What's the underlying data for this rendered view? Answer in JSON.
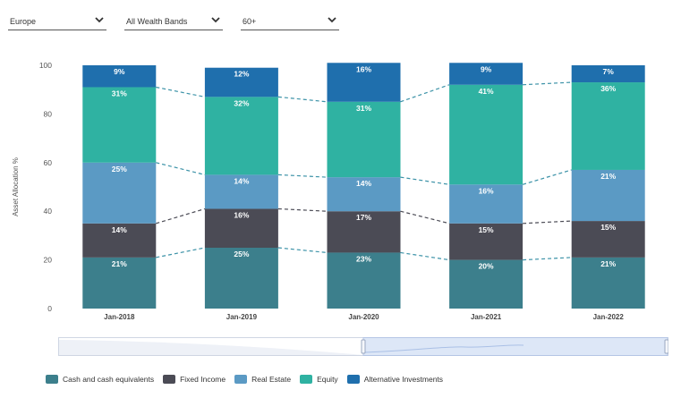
{
  "filters": {
    "region": "Europe",
    "wealth_band": "All Wealth Bands",
    "age": "60+"
  },
  "icons": {
    "dropdown": "chevron-down-icon"
  },
  "colors": {
    "Cash and cash equivalents": "#3c7f8c",
    "Fixed Income": "#4b4b55",
    "Real Estate": "#5b9ac4",
    "Equity": "#2fb2a2",
    "Alternative Investments": "#1f6fad",
    "connector_teal": "#3d93a8",
    "connector_dark": "#4b4b55"
  },
  "chart_data": {
    "type": "bar",
    "stacked": true,
    "categories": [
      "Jan-2018",
      "Jan-2019",
      "Jan-2020",
      "Jan-2021",
      "Jan-2022"
    ],
    "series": [
      {
        "name": "Cash and cash equivalents",
        "values": [
          21,
          25,
          23,
          20,
          21
        ]
      },
      {
        "name": "Fixed Income",
        "values": [
          14,
          16,
          17,
          15,
          15
        ]
      },
      {
        "name": "Real Estate",
        "values": [
          25,
          14,
          14,
          16,
          21
        ]
      },
      {
        "name": "Equity",
        "values": [
          31,
          32,
          31,
          41,
          36
        ]
      },
      {
        "name": "Alternative Investments",
        "values": [
          9,
          12,
          16,
          9,
          7
        ]
      }
    ],
    "ylabel": "Asset Allocation %",
    "ylim": [
      0,
      100
    ],
    "yticks": [
      0,
      20,
      40,
      60,
      80,
      100
    ],
    "grid": false,
    "legend_position": "bottom-left"
  },
  "legend": [
    "Cash and cash equivalents",
    "Fixed Income",
    "Real Estate",
    "Equity",
    "Alternative Investments"
  ]
}
